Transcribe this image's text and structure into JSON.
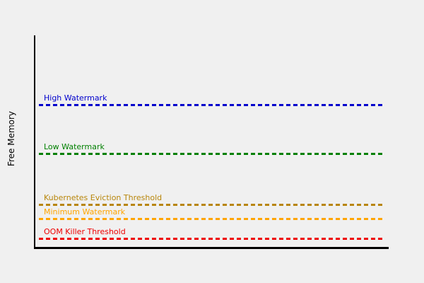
{
  "chart_data": {
    "type": "line",
    "title": "",
    "xlabel": "",
    "ylabel": "Free Memory",
    "ylim": [
      0,
      1
    ],
    "xlim": [
      0,
      1
    ],
    "grid": false,
    "legend_position": "none",
    "axis_color": "#000000",
    "background_color": "#f0f0f0",
    "description": "Conceptual memory threshold chart: five horizontal dashed threshold lines, no numeric ticks",
    "thresholds": [
      {
        "key": "high-watermark",
        "label": "High Watermark",
        "color": "#0000cc",
        "level": 0.67,
        "line_style": "dashed"
      },
      {
        "key": "low-watermark",
        "label": "Low Watermark",
        "color": "#008000",
        "level": 0.44,
        "line_style": "dashed"
      },
      {
        "key": "kubernetes-eviction-threshold",
        "label": "Kubernetes Eviction Threshold",
        "color": "#b8860b",
        "level": 0.2,
        "line_style": "dashed"
      },
      {
        "key": "minimum-watermark",
        "label": "Minimum Watermark",
        "color": "#ffa500",
        "level": 0.135,
        "line_style": "dashed"
      },
      {
        "key": "oom-killer-threshold",
        "label": "OOM Killer Threshold",
        "color": "#ee0000",
        "level": 0.04,
        "line_style": "dashed"
      }
    ]
  }
}
